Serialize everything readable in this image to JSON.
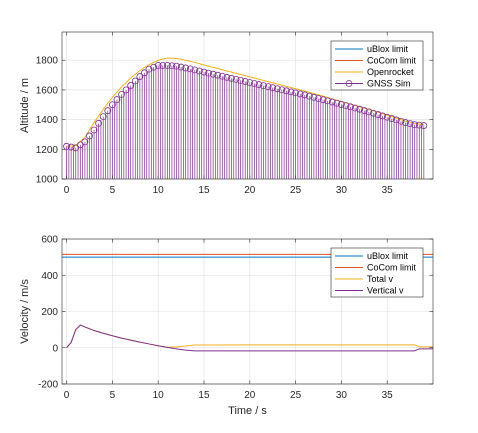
{
  "chart_data": [
    {
      "type": "line",
      "xlabel": "",
      "ylabel": "Altitude / m",
      "xlim": [
        -0.5,
        40
      ],
      "ylim": [
        1000,
        1990
      ],
      "xticks": [
        "0",
        "5",
        "10",
        "15",
        "20",
        "25",
        "30",
        "35"
      ],
      "yticks": [
        "1000",
        "1200",
        "1400",
        "1600",
        "1800"
      ],
      "grid": true,
      "legend_position": "top-right",
      "series": [
        {
          "name": "uBlox limit",
          "color": "#0072BD",
          "x": [],
          "y": []
        },
        {
          "name": "CoCom limit",
          "color": "#D95319",
          "x": [],
          "y": []
        },
        {
          "name": "Openrocket",
          "color": "#EDB120",
          "x": [
            0,
            1,
            2,
            3,
            4,
            5,
            6,
            7,
            8,
            9,
            10,
            11,
            12,
            13,
            14,
            15,
            16,
            17,
            18,
            19,
            20,
            21,
            22,
            23,
            24,
            25,
            26,
            27,
            28,
            29,
            30,
            31,
            32,
            33,
            34,
            35,
            36,
            37,
            38,
            39
          ],
          "y": [
            1220,
            1225,
            1280,
            1380,
            1470,
            1550,
            1620,
            1680,
            1730,
            1770,
            1800,
            1815,
            1812,
            1800,
            1785,
            1768,
            1752,
            1736,
            1720,
            1704,
            1688,
            1672,
            1656,
            1640,
            1624,
            1608,
            1592,
            1575,
            1558,
            1540,
            1522,
            1504,
            1486,
            1468,
            1450,
            1430,
            1410,
            1390,
            1375,
            1365
          ]
        },
        {
          "name": "GNSS Sim",
          "color": "#7E2F8E",
          "style": "stem",
          "x": [
            0,
            1,
            2,
            3,
            4,
            5,
            6,
            7,
            8,
            9,
            10,
            11,
            12,
            13,
            14,
            15,
            16,
            17,
            18,
            19,
            20,
            21,
            22,
            23,
            24,
            25,
            26,
            27,
            28,
            29,
            30,
            31,
            32,
            33,
            34,
            35,
            36,
            37,
            38,
            39
          ],
          "y": [
            1220,
            1210,
            1250,
            1330,
            1420,
            1500,
            1570,
            1630,
            1690,
            1740,
            1765,
            1765,
            1760,
            1748,
            1735,
            1720,
            1706,
            1692,
            1678,
            1664,
            1650,
            1636,
            1622,
            1608,
            1594,
            1580,
            1566,
            1550,
            1534,
            1518,
            1502,
            1486,
            1470,
            1452,
            1434,
            1416,
            1398,
            1380,
            1366,
            1360
          ]
        }
      ]
    },
    {
      "type": "line",
      "xlabel": "Time / s",
      "ylabel": "Velocity / m/s",
      "xlim": [
        -0.5,
        40
      ],
      "ylim": [
        -200,
        600
      ],
      "xticks": [
        "0",
        "5",
        "10",
        "15",
        "20",
        "25",
        "30",
        "35"
      ],
      "yticks": [
        "-200",
        "0",
        "200",
        "400",
        "600"
      ],
      "grid": true,
      "legend_position": "top-right",
      "series": [
        {
          "name": "uBlox limit",
          "color": "#0072BD",
          "x": [
            -0.5,
            40
          ],
          "y": [
            500,
            500
          ]
        },
        {
          "name": "CoCom limit",
          "color": "#D95319",
          "x": [
            -0.5,
            40
          ],
          "y": [
            515,
            515
          ]
        },
        {
          "name": "Total v",
          "color": "#EDB120",
          "x": [
            0,
            0.5,
            1,
            1.5,
            2,
            3,
            4,
            5,
            6,
            7,
            8,
            9,
            10,
            11,
            12,
            13,
            14,
            20,
            25,
            30,
            35,
            38,
            38.5,
            40
          ],
          "y": [
            0,
            30,
            100,
            125,
            115,
            95,
            80,
            66,
            53,
            42,
            31,
            21,
            11,
            3,
            5,
            10,
            15,
            16,
            16,
            16,
            16,
            16,
            5,
            5
          ]
        },
        {
          "name": "Vertical v",
          "color": "#7E2F8E",
          "x": [
            0,
            0.5,
            1,
            1.5,
            2,
            3,
            4,
            5,
            6,
            7,
            8,
            9,
            10,
            11,
            12,
            13,
            14,
            20,
            25,
            30,
            35,
            38,
            38.5,
            40
          ],
          "y": [
            0,
            30,
            100,
            125,
            115,
            95,
            80,
            66,
            53,
            42,
            31,
            21,
            11,
            2,
            -6,
            -13,
            -17,
            -17,
            -17,
            -17,
            -17,
            -17,
            -6,
            -6
          ]
        }
      ]
    }
  ]
}
